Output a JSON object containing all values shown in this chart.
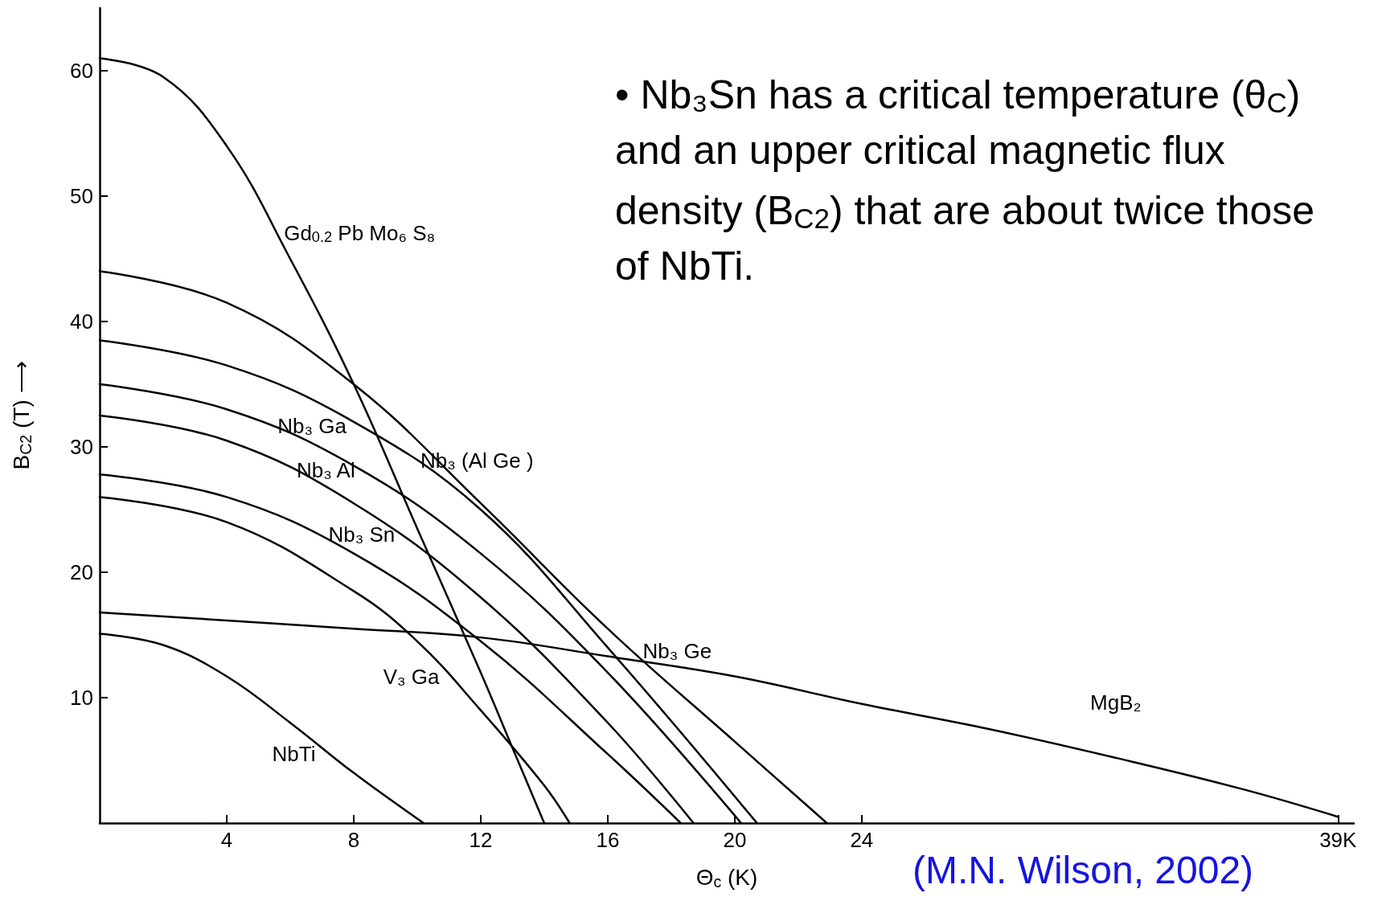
{
  "chart_data": {
    "type": "line",
    "xlabel": "Θ$_{c}$ (K)",
    "ylabel": "B$_{C2}$ (T) ⟶",
    "xlim": [
      0,
      39.5
    ],
    "xticks": [
      4,
      8,
      12,
      16,
      20,
      24,
      {
        "value": 39,
        "label": "39K"
      }
    ],
    "ylim": [
      0,
      65
    ],
    "yticks": [
      10,
      20,
      30,
      40,
      50,
      60
    ],
    "grid": false,
    "legend": false,
    "marker": "none",
    "line_style": "solid",
    "series": [
      {
        "name": "Gd$_{0.2}$ Pb Mo₆ S₈",
        "color": "#000000",
        "x": [
          0,
          2,
          4,
          6,
          8,
          10,
          12,
          13,
          14
        ],
        "values": [
          61,
          59.5,
          54,
          45,
          35,
          23.5,
          12,
          6,
          0
        ]
      },
      {
        "name": "Nb₃ Ge",
        "color": "#000000",
        "x": [
          0,
          4,
          8,
          12,
          16,
          20,
          22.9
        ],
        "values": [
          44,
          41.5,
          35,
          25.5,
          15.5,
          6.5,
          0
        ]
      },
      {
        "name": "Nb₃ (Al Ge )",
        "color": "#000000",
        "x": [
          0,
          4,
          8,
          12,
          16,
          20.7
        ],
        "values": [
          38.5,
          36.5,
          32,
          25,
          14,
          0
        ]
      },
      {
        "name": "Nb₃ Ga",
        "color": "#000000",
        "x": [
          0,
          4,
          8,
          12,
          16,
          20.2
        ],
        "values": [
          35,
          33,
          28.5,
          21.5,
          12,
          0
        ]
      },
      {
        "name": "Nb₃ Al",
        "color": "#000000",
        "x": [
          0,
          4,
          8,
          12,
          16,
          18.7
        ],
        "values": [
          32.5,
          30.5,
          25.5,
          18,
          8,
          0
        ]
      },
      {
        "name": "Nb₃ Sn",
        "color": "#000000",
        "x": [
          0,
          4,
          8,
          12,
          16,
          18.3
        ],
        "values": [
          27.8,
          26,
          21.5,
          14.5,
          5.5,
          0
        ]
      },
      {
        "name": "V₃ Ga",
        "color": "#000000",
        "x": [
          0,
          4,
          8,
          10,
          12,
          14,
          14.8
        ],
        "values": [
          26,
          24,
          18.5,
          14.5,
          9,
          3,
          0
        ]
      },
      {
        "name": "NbTi",
        "color": "#000000",
        "x": [
          0,
          2,
          4,
          6,
          8,
          10.2
        ],
        "values": [
          15.1,
          14.2,
          11.7,
          8,
          4,
          0
        ]
      },
      {
        "name": "MgB₂",
        "color": "#000000",
        "x": [
          0,
          8,
          12,
          16,
          20,
          24,
          28,
          32,
          36,
          39
        ],
        "values": [
          16.8,
          15.5,
          14.8,
          13.3,
          11.7,
          9.5,
          7.5,
          5.2,
          2.7,
          0.5
        ]
      }
    ],
    "annotations": [
      "• Nb₃Sn has a critical temperature (θ$_{C}$) and an upper critical magnetic flux density (B$_{C2}$) that are about twice those of NbTi.",
      "(M.N. Wilson, 2002)"
    ]
  }
}
